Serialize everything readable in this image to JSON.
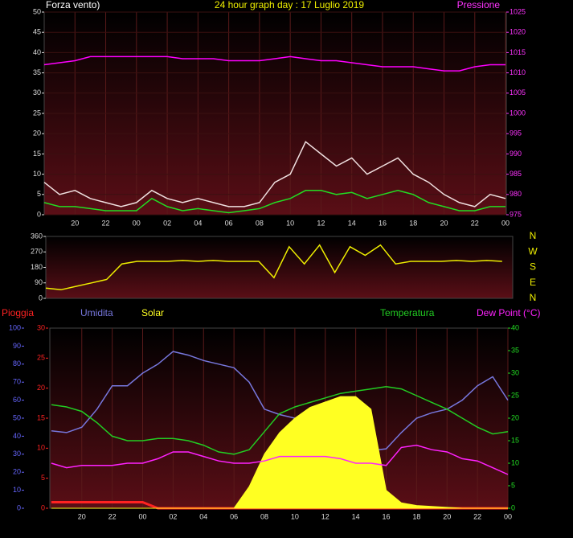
{
  "chart_data": [
    {
      "type": "line",
      "title": "24 hour graph day : 17 Luglio 2019",
      "ylabel": "Forza vento)",
      "y2label": "Pressione",
      "x": [
        18,
        19,
        20,
        21,
        22,
        23,
        24,
        25,
        26,
        27,
        28,
        29,
        30,
        31,
        32,
        33,
        34,
        35,
        36,
        37,
        38,
        39,
        40,
        41,
        42,
        43,
        44,
        45,
        46,
        47,
        48
      ],
      "xlim": [
        18,
        48.05
      ],
      "xticks": [
        20,
        22,
        {
          "value": 24,
          "label": "00"
        },
        {
          "value": 26,
          "label": "02"
        },
        {
          "value": 28,
          "label": "04"
        },
        {
          "value": 30,
          "label": "06"
        },
        {
          "value": 32,
          "label": "08"
        },
        {
          "value": 34,
          "label": "10"
        },
        {
          "value": 36,
          "label": "12"
        },
        {
          "value": 38,
          "label": "14"
        },
        {
          "value": 40,
          "label": "16"
        },
        {
          "value": 42,
          "label": "18"
        },
        {
          "value": 44,
          "label": "20"
        },
        {
          "value": 46,
          "label": "22"
        },
        {
          "value": 48,
          "label": "00"
        }
      ],
      "ylim": [
        0,
        50
      ],
      "yticks": [
        0,
        5,
        10,
        15,
        20,
        25,
        30,
        35,
        40,
        45,
        50
      ],
      "ycolor": "#dddddd",
      "y2lim": [
        975,
        1025
      ],
      "y2ticks": [
        975,
        980,
        985,
        990,
        995,
        1000,
        1005,
        1010,
        1015,
        1020,
        1025
      ],
      "y2color": "#ff33ff",
      "grid": true,
      "series": [
        {
          "color": "#f0e0e0",
          "axis": "y",
          "values": [
            8,
            5,
            6,
            4,
            3,
            2,
            3,
            6,
            4,
            3,
            4,
            3,
            2,
            2,
            3,
            8,
            10,
            18,
            15,
            12,
            14,
            10,
            12,
            14,
            10,
            8,
            5,
            3,
            2,
            5,
            4
          ]
        },
        {
          "color": "#22dd22",
          "axis": "y",
          "values": [
            3,
            2,
            2,
            1.5,
            1,
            1,
            1,
            4,
            2,
            1,
            1.5,
            1,
            0.5,
            1,
            1.5,
            3,
            4,
            6,
            6,
            5,
            5.5,
            4,
            5,
            6,
            5,
            3,
            2,
            1,
            1,
            2,
            2
          ]
        },
        {
          "color": "#ff00ff",
          "axis": "y2",
          "values": [
            1012,
            1012.5,
            1013,
            1014,
            1014,
            1014,
            1014,
            1014,
            1014,
            1013.5,
            1013.5,
            1013.5,
            1013,
            1013,
            1013,
            1013.5,
            1014,
            1013.5,
            1013,
            1013,
            1012.5,
            1012,
            1011.5,
            1011.5,
            1011.5,
            1011,
            1010.5,
            1010.5,
            1011.5,
            1012,
            1012
          ]
        }
      ]
    },
    {
      "type": "line",
      "x": [
        18,
        19,
        20,
        21,
        22,
        23,
        24,
        25,
        26,
        27,
        28,
        29,
        30,
        31,
        32,
        33,
        34,
        35,
        36,
        37,
        38,
        39,
        40,
        41,
        42,
        43,
        44,
        45,
        46,
        47,
        48
      ],
      "xlim": [
        18,
        48.7
      ],
      "ylim": [
        0,
        360
      ],
      "yticks": [
        0,
        90,
        180,
        270,
        360
      ],
      "ycolor": "#dddddd",
      "compass": [
        "N",
        "W",
        "S",
        "E",
        "N"
      ],
      "series": [
        {
          "color": "#eeee00",
          "axis": "y",
          "values": [
            60,
            50,
            70,
            90,
            110,
            200,
            215,
            215,
            215,
            220,
            215,
            220,
            215,
            215,
            215,
            120,
            300,
            200,
            310,
            150,
            300,
            250,
            310,
            200,
            215,
            215,
            215,
            220,
            215,
            220,
            215
          ]
        }
      ]
    },
    {
      "type": "line",
      "x": [
        18,
        19,
        20,
        21,
        22,
        23,
        24,
        25,
        26,
        27,
        28,
        29,
        30,
        31,
        32,
        33,
        34,
        35,
        36,
        37,
        38,
        39,
        40,
        41,
        42,
        43,
        44,
        45,
        46,
        47,
        48
      ],
      "xlim": [
        17.9,
        48
      ],
      "xticks": [
        20,
        22,
        {
          "value": 24,
          "label": "00"
        },
        {
          "value": 26,
          "label": "02"
        },
        {
          "value": 28,
          "label": "04"
        },
        {
          "value": 30,
          "label": "06"
        },
        {
          "value": 32,
          "label": "08"
        },
        {
          "value": 34,
          "label": "10"
        },
        {
          "value": 36,
          "label": "12"
        },
        {
          "value": 38,
          "label": "14"
        },
        {
          "value": 40,
          "label": "16"
        },
        {
          "value": 42,
          "label": "18"
        },
        {
          "value": 44,
          "label": "20"
        },
        {
          "value": 46,
          "label": "22"
        },
        {
          "value": 48,
          "label": "00"
        }
      ],
      "ylim": [
        0,
        30
      ],
      "yticks": [
        0,
        5,
        10,
        15,
        20,
        25,
        30
      ],
      "ycolor": "#ff2222",
      "y3lim": [
        0,
        100
      ],
      "y3ticks": [
        0,
        10,
        20,
        30,
        40,
        50,
        60,
        70,
        80,
        90,
        100
      ],
      "y3color": "#6666ff",
      "y2lim": [
        0,
        40
      ],
      "y2ticks": [
        0,
        5,
        10,
        15,
        20,
        25,
        30,
        35,
        40
      ],
      "y2color": "#22dd22",
      "series": [
        {
          "name": "Pioggia",
          "color": "#ff2222",
          "axis": "y",
          "values": [
            1,
            1,
            1,
            1,
            1,
            1,
            1,
            0,
            0,
            0,
            0,
            0,
            0,
            0,
            0,
            0,
            0,
            0,
            0,
            0,
            0,
            0,
            0,
            0,
            0,
            0,
            0,
            0,
            0,
            0,
            0
          ]
        },
        {
          "name": "Umidita",
          "color": "#7777dd",
          "axis": "y3",
          "values": [
            43,
            42,
            45,
            55,
            68,
            68,
            75,
            80,
            87,
            85,
            82,
            80,
            78,
            70,
            55,
            52,
            50,
            47,
            43,
            39,
            34,
            32,
            33,
            42,
            50,
            53,
            55,
            60,
            68,
            73,
            60
          ]
        },
        {
          "name": "Solar",
          "color": "#ffff22",
          "axis": "y3",
          "area": true,
          "values": [
            0,
            0,
            0,
            0,
            0,
            0,
            0,
            0,
            0,
            0,
            0,
            0,
            0,
            12,
            30,
            42,
            50,
            56,
            59,
            62,
            62,
            55,
            10,
            3,
            1.5,
            1,
            0.5,
            0,
            0,
            0,
            0
          ]
        },
        {
          "name": "Temperatura",
          "color": "#22cc22",
          "axis": "y2",
          "values": [
            23,
            22.5,
            21.5,
            19,
            16,
            15,
            15,
            15.5,
            15.5,
            15,
            14,
            12.5,
            12,
            13,
            17,
            21,
            22.5,
            23.5,
            24.5,
            25.5,
            26,
            26.5,
            27,
            26.5,
            25,
            23.5,
            22,
            20,
            18,
            16.5,
            17
          ]
        },
        {
          "name": "Dew Point (°C)",
          "color": "#ff22ff",
          "axis": "y2",
          "values": [
            10,
            9,
            9.5,
            9.5,
            9.5,
            10,
            10,
            11,
            12.5,
            12.5,
            11.5,
            10.5,
            10,
            10,
            10.5,
            11.5,
            11.5,
            11.5,
            11.5,
            11,
            10,
            10,
            9.5,
            13.5,
            14,
            13,
            12.5,
            11,
            10.5,
            9,
            7.5
          ]
        }
      ]
    }
  ]
}
